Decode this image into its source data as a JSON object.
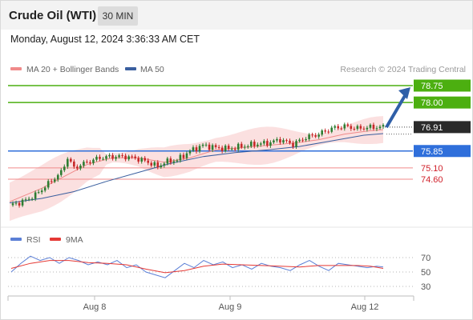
{
  "header": {
    "title": "Crude Oil (WTI)",
    "timeframe": "30 MIN",
    "date": "Monday, August 12, 2024 3:36:33 AM CET"
  },
  "legend": {
    "items": [
      {
        "label": "MA 20 + Bollinger Bands",
        "color": "#f08a8a"
      },
      {
        "label": "MA 50",
        "color": "#3a5f9f"
      }
    ],
    "credit": "Research © 2024 Trading Central"
  },
  "colors": {
    "resistance": "#4caf10",
    "pivot": "#2f6fdb",
    "support": "#f08a8a",
    "support_text": "#d0202a",
    "last_price": "#2a2a2a",
    "arrow": "#2f5fa8",
    "candle_up": "#2e7d32",
    "candle_down": "#c62828",
    "rsi": "#5b7fd6",
    "rsi_ma": "#e53935"
  },
  "chart_data": [
    {
      "type": "candlestick",
      "ylim": [
        73.2,
        79.3
      ],
      "x_ticks": [
        "Aug 8",
        "Aug 9",
        "Aug 12"
      ],
      "levels": [
        {
          "value": 78.75,
          "label": "78.75",
          "kind": "resistance"
        },
        {
          "value": 78.0,
          "label": "78.00",
          "kind": "resistance"
        },
        {
          "value": 75.85,
          "label": "75.85",
          "kind": "pivot"
        },
        {
          "value": 75.1,
          "label": "75.10",
          "kind": "support"
        },
        {
          "value": 74.6,
          "label": "74.60",
          "kind": "support"
        }
      ],
      "last_price": {
        "value": 76.91,
        "label": "76.91"
      },
      "arrow": {
        "from": 76.9,
        "to": 78.75
      },
      "close_path": [
        [
          0,
          73.45
        ],
        [
          4,
          73.6
        ],
        [
          8,
          73.9
        ],
        [
          12,
          74.4
        ],
        [
          16,
          74.9
        ],
        [
          18,
          75.55
        ],
        [
          20,
          75.1
        ],
        [
          24,
          75.35
        ],
        [
          28,
          75.55
        ],
        [
          32,
          75.6
        ],
        [
          36,
          75.6
        ],
        [
          40,
          75.5
        ],
        [
          44,
          75.3
        ],
        [
          46,
          75.15
        ],
        [
          48,
          75.35
        ],
        [
          52,
          75.45
        ],
        [
          56,
          75.85
        ],
        [
          60,
          76.1
        ],
        [
          64,
          76.0
        ],
        [
          68,
          75.95
        ],
        [
          72,
          76.05
        ],
        [
          76,
          76.15
        ],
        [
          80,
          76.2
        ],
        [
          84,
          76.35
        ],
        [
          88,
          76.15
        ],
        [
          92,
          76.45
        ],
        [
          96,
          76.6
        ],
        [
          100,
          76.85
        ],
        [
          104,
          76.95
        ],
        [
          108,
          76.85
        ],
        [
          112,
          76.9
        ],
        [
          116,
          76.91
        ]
      ],
      "ma20": [
        [
          0,
          73.6
        ],
        [
          10,
          74.2
        ],
        [
          18,
          74.8
        ],
        [
          24,
          75.25
        ],
        [
          32,
          75.55
        ],
        [
          40,
          75.55
        ],
        [
          48,
          75.35
        ],
        [
          56,
          75.55
        ],
        [
          64,
          75.9
        ],
        [
          72,
          76.0
        ],
        [
          80,
          76.1
        ],
        [
          88,
          76.2
        ],
        [
          96,
          76.35
        ],
        [
          104,
          76.6
        ],
        [
          112,
          76.75
        ],
        [
          116,
          76.8
        ]
      ],
      "ma50": [
        [
          0,
          73.55
        ],
        [
          10,
          73.75
        ],
        [
          20,
          74.05
        ],
        [
          30,
          74.5
        ],
        [
          40,
          74.9
        ],
        [
          50,
          75.3
        ],
        [
          60,
          75.6
        ],
        [
          70,
          75.78
        ],
        [
          80,
          75.9
        ],
        [
          90,
          76.05
        ],
        [
          100,
          76.3
        ],
        [
          110,
          76.55
        ],
        [
          116,
          76.62
        ]
      ]
    },
    {
      "type": "line",
      "legend": [
        "RSI",
        "9MA"
      ],
      "ylim": [
        20,
        80
      ],
      "y_ticks": [
        70,
        50,
        30
      ],
      "rsi": [
        [
          0,
          50
        ],
        [
          3,
          62
        ],
        [
          6,
          72
        ],
        [
          9,
          66
        ],
        [
          12,
          70
        ],
        [
          15,
          62
        ],
        [
          18,
          70
        ],
        [
          21,
          66
        ],
        [
          24,
          60
        ],
        [
          27,
          64
        ],
        [
          30,
          60
        ],
        [
          33,
          66
        ],
        [
          36,
          56
        ],
        [
          39,
          60
        ],
        [
          42,
          50
        ],
        [
          45,
          46
        ],
        [
          48,
          42
        ],
        [
          51,
          52
        ],
        [
          54,
          62
        ],
        [
          57,
          56
        ],
        [
          60,
          66
        ],
        [
          63,
          60
        ],
        [
          66,
          64
        ],
        [
          69,
          56
        ],
        [
          72,
          60
        ],
        [
          75,
          54
        ],
        [
          78,
          62
        ],
        [
          81,
          58
        ],
        [
          84,
          56
        ],
        [
          87,
          52
        ],
        [
          90,
          60
        ],
        [
          93,
          66
        ],
        [
          96,
          58
        ],
        [
          99,
          52
        ],
        [
          102,
          62
        ],
        [
          105,
          60
        ],
        [
          108,
          58
        ],
        [
          111,
          56
        ],
        [
          114,
          58
        ],
        [
          116,
          57
        ]
      ],
      "ma9": [
        [
          0,
          55
        ],
        [
          6,
          62
        ],
        [
          12,
          66
        ],
        [
          18,
          66
        ],
        [
          24,
          63
        ],
        [
          30,
          62
        ],
        [
          36,
          60
        ],
        [
          42,
          54
        ],
        [
          48,
          49
        ],
        [
          54,
          52
        ],
        [
          60,
          58
        ],
        [
          66,
          61
        ],
        [
          72,
          60
        ],
        [
          78,
          59
        ],
        [
          84,
          58
        ],
        [
          90,
          57
        ],
        [
          96,
          59
        ],
        [
          102,
          59
        ],
        [
          108,
          59
        ],
        [
          112,
          58
        ],
        [
          116,
          55
        ]
      ]
    }
  ]
}
